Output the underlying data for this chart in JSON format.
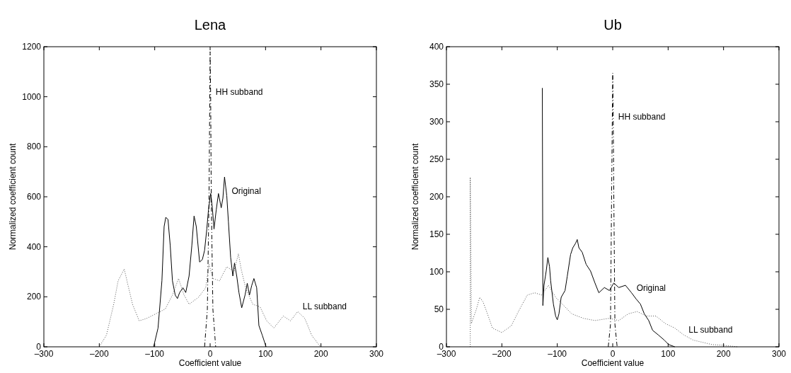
{
  "chart_data": [
    {
      "type": "line",
      "title": "Lena",
      "xlabel": "Coefficient value",
      "ylabel": "Normalized coefficient count",
      "xlim": [
        -300,
        300
      ],
      "ylim": [
        0,
        1200
      ],
      "xticks": [
        {
          "value": -300,
          "label": "–300"
        },
        {
          "value": -200,
          "label": "–200"
        },
        {
          "value": -100,
          "label": "–100"
        },
        0,
        100,
        200,
        300
      ],
      "yticks": [
        0,
        200,
        400,
        600,
        800,
        1000,
        1200
      ],
      "series": [
        {
          "color": "#000000",
          "line_style": "solid",
          "x": [
            -102,
            -94,
            -87,
            -83,
            -80,
            -76,
            -72,
            -68,
            -63,
            -59,
            -55,
            -49,
            -44,
            -38,
            -33,
            -29,
            -25,
            -19,
            -14,
            -10,
            -6,
            -3,
            1,
            4,
            7,
            11,
            15,
            20,
            23,
            26,
            30,
            33,
            37,
            41,
            44,
            48,
            52,
            57,
            63,
            67,
            71,
            75,
            79,
            84,
            88,
            94,
            101
          ],
          "values": [
            0,
            75,
            264,
            481,
            518,
            509,
            405,
            264,
            207,
            193,
            217,
            236,
            217,
            283,
            405,
            523,
            481,
            339,
            349,
            386,
            471,
            547,
            613,
            556,
            471,
            547,
            613,
            556,
            594,
            679,
            604,
            500,
            358,
            283,
            335,
            283,
            217,
            156,
            207,
            254,
            207,
            245,
            273,
            236,
            85,
            47,
            0
          ]
        },
        {
          "color": "#000000",
          "line_style": "dashdot",
          "x": [
            -10,
            -5,
            -2,
            0,
            1,
            2,
            5,
            10
          ],
          "values": [
            0,
            150,
            600,
            1180,
            1000,
            600,
            150,
            0
          ]
        },
        {
          "color": "#555555",
          "line_style": "dotted",
          "x": [
            -200,
            -187,
            -174,
            -166,
            -155,
            -149,
            -140,
            -128,
            -115,
            -98,
            -81,
            -68,
            -57,
            -47,
            -38,
            -21,
            -8,
            -2,
            5,
            17,
            30,
            43,
            51,
            56,
            64,
            77,
            90,
            102,
            115,
            132,
            145,
            158,
            171,
            183,
            199
          ],
          "values": [
            0,
            47,
            170,
            264,
            311,
            254,
            170,
            104,
            113,
            132,
            151,
            207,
            273,
            207,
            170,
            198,
            236,
            330,
            273,
            264,
            320,
            301,
            372,
            311,
            236,
            170,
            160,
            104,
            75,
            123,
            104,
            141,
            113,
            47,
            0
          ]
        }
      ],
      "annotations": [
        {
          "text": "HH subband",
          "x": 1,
          "y": 1000
        },
        {
          "text": "Original",
          "x": 30,
          "y": 604
        },
        {
          "text": "LL subband",
          "x": 158,
          "y": 141
        }
      ]
    },
    {
      "type": "line",
      "title": "Ub",
      "xlabel": "Coefficient value",
      "ylabel": "Normalized coefficient count",
      "xlim": [
        -300,
        300
      ],
      "ylim": [
        0,
        400
      ],
      "xticks": [
        {
          "value": -300,
          "label": "–300"
        },
        {
          "value": -200,
          "label": "–200"
        },
        {
          "value": -100,
          "label": "–100"
        },
        0,
        100,
        200,
        300
      ],
      "yticks": [
        0,
        50,
        100,
        150,
        200,
        250,
        300,
        350,
        400
      ],
      "series": [
        {
          "color": "#000000",
          "line_style": "solid",
          "x": [
            -127,
            -126,
            -124,
            -120,
            -117,
            -114,
            -112,
            -107,
            -103,
            -100,
            -97,
            -93,
            -86,
            -82,
            -76,
            -72,
            -67,
            -64,
            -61,
            -55,
            -48,
            -40,
            -32,
            -25,
            -15,
            -6,
            2,
            11,
            23,
            34,
            42,
            50,
            57,
            65,
            72,
            82,
            93,
            101,
            112
          ],
          "values": [
            345,
            55,
            82,
            101,
            119,
            107,
            88,
            57,
            41,
            36,
            44,
            66,
            75,
            94,
            123,
            132,
            138,
            143,
            132,
            126,
            110,
            101,
            85,
            72,
            79,
            75,
            85,
            79,
            82,
            72,
            64,
            57,
            44,
            35,
            22,
            16,
            9,
            3,
            0
          ]
        },
        {
          "color": "#000000",
          "line_style": "dashdot",
          "x": [
            -8,
            -4,
            -2,
            0,
            1,
            2,
            4,
            8
          ],
          "values": [
            0,
            30,
            200,
            365,
            300,
            200,
            30,
            0
          ]
        },
        {
          "color": "#555555",
          "line_style": "dotted",
          "x": [
            -257,
            -257,
            -255,
            -246,
            -240,
            -234,
            -226,
            -217,
            -200,
            -183,
            -168,
            -154,
            -141,
            -128,
            -116,
            -103,
            -91,
            -74,
            -53,
            -32,
            -6,
            11,
            28,
            44,
            61,
            78,
            95,
            112,
            128,
            145,
            162,
            179,
            200,
            225
          ],
          "values": [
            0,
            226,
            31,
            50,
            66,
            60,
            44,
            25,
            19,
            28,
            50,
            69,
            72,
            69,
            82,
            66,
            57,
            44,
            38,
            35,
            38,
            35,
            44,
            47,
            41,
            41,
            31,
            25,
            16,
            9,
            6,
            3,
            2,
            0
          ]
        }
      ],
      "annotations": [
        {
          "text": "HH subband",
          "x": 1,
          "y": 300
        },
        {
          "text": "Original",
          "x": 34,
          "y": 72
        },
        {
          "text": "LL subband",
          "x": 128,
          "y": 16
        }
      ]
    }
  ]
}
